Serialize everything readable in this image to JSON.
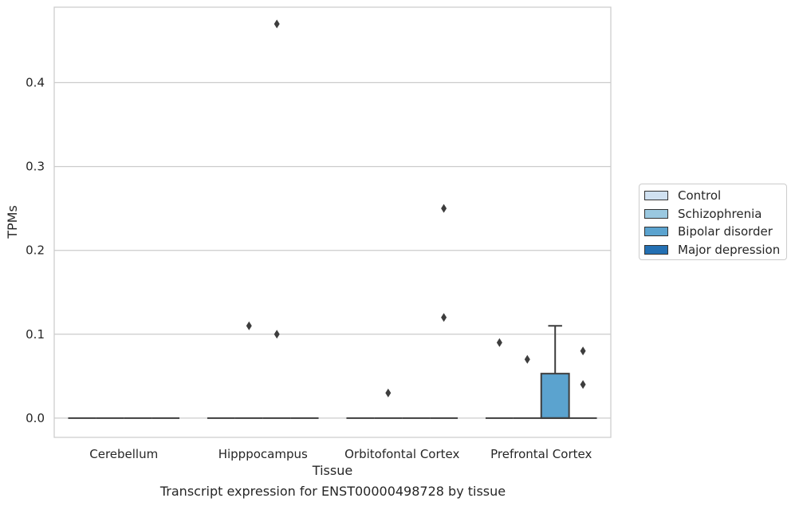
{
  "chart_data": {
    "type": "box",
    "ylabel": "TPMs",
    "xlabel": "Tissue",
    "caption": "Transcript expression for ENST00000498728 by tissue",
    "ylim": [
      -0.023,
      0.49
    ],
    "yticks": [
      0.0,
      0.1,
      0.2,
      0.3,
      0.4
    ],
    "ytick_labels": [
      "0.0",
      "0.1",
      "0.2",
      "0.3",
      "0.4"
    ],
    "grid": "horizontal",
    "categories": [
      "Cerebellum",
      "Hipppocampus",
      "Orbitofontal Cortex",
      "Prefrontal Cortex"
    ],
    "legend": {
      "position": "center-right"
    },
    "series": [
      {
        "name": "Control",
        "color": "#d0e1f1"
      },
      {
        "name": "Schizophrenia",
        "color": "#9ac8e0"
      },
      {
        "name": "Bipolar disorder",
        "color": "#5ba3cf"
      },
      {
        "name": "Major depression",
        "color": "#2470b3"
      }
    ],
    "boxes": [
      {
        "category": 0,
        "series": 0,
        "q1": 0,
        "median": 0,
        "q3": 0,
        "whislo": 0,
        "whishi": 0,
        "fliers": []
      },
      {
        "category": 0,
        "series": 1,
        "q1": 0,
        "median": 0,
        "q3": 0,
        "whislo": 0,
        "whishi": 0,
        "fliers": []
      },
      {
        "category": 0,
        "series": 2,
        "q1": 0,
        "median": 0,
        "q3": 0,
        "whislo": 0,
        "whishi": 0,
        "fliers": []
      },
      {
        "category": 0,
        "series": 3,
        "q1": 0,
        "median": 0,
        "q3": 0,
        "whislo": 0,
        "whishi": 0,
        "fliers": []
      },
      {
        "category": 1,
        "series": 0,
        "q1": 0,
        "median": 0,
        "q3": 0,
        "whislo": 0,
        "whishi": 0,
        "fliers": []
      },
      {
        "category": 1,
        "series": 1,
        "q1": 0,
        "median": 0,
        "q3": 0,
        "whislo": 0,
        "whishi": 0,
        "fliers": [
          0.11
        ]
      },
      {
        "category": 1,
        "series": 2,
        "q1": 0,
        "median": 0,
        "q3": 0,
        "whislo": 0,
        "whishi": 0,
        "fliers": [
          0.47,
          0.1
        ]
      },
      {
        "category": 1,
        "series": 3,
        "q1": 0,
        "median": 0,
        "q3": 0,
        "whislo": 0,
        "whishi": 0,
        "fliers": []
      },
      {
        "category": 2,
        "series": 0,
        "q1": 0,
        "median": 0,
        "q3": 0,
        "whislo": 0,
        "whishi": 0,
        "fliers": []
      },
      {
        "category": 2,
        "series": 1,
        "q1": 0,
        "median": 0,
        "q3": 0,
        "whislo": 0,
        "whishi": 0,
        "fliers": [
          0.03
        ]
      },
      {
        "category": 2,
        "series": 2,
        "q1": 0,
        "median": 0,
        "q3": 0,
        "whislo": 0,
        "whishi": 0,
        "fliers": []
      },
      {
        "category": 2,
        "series": 3,
        "q1": 0,
        "median": 0,
        "q3": 0,
        "whislo": 0,
        "whishi": 0,
        "fliers": [
          0.25,
          0.12
        ]
      },
      {
        "category": 3,
        "series": 0,
        "q1": 0,
        "median": 0,
        "q3": 0,
        "whislo": 0,
        "whishi": 0,
        "fliers": [
          0.09
        ]
      },
      {
        "category": 3,
        "series": 1,
        "q1": 0,
        "median": 0,
        "q3": 0,
        "whislo": 0,
        "whishi": 0,
        "fliers": [
          0.07
        ]
      },
      {
        "category": 3,
        "series": 2,
        "q1": 0,
        "median": 0,
        "q3": 0.053,
        "whislo": 0,
        "whishi": 0.11,
        "fliers": []
      },
      {
        "category": 3,
        "series": 3,
        "q1": 0,
        "median": 0,
        "q3": 0,
        "whislo": 0,
        "whishi": 0,
        "fliers": [
          0.08,
          0.04
        ]
      }
    ]
  }
}
